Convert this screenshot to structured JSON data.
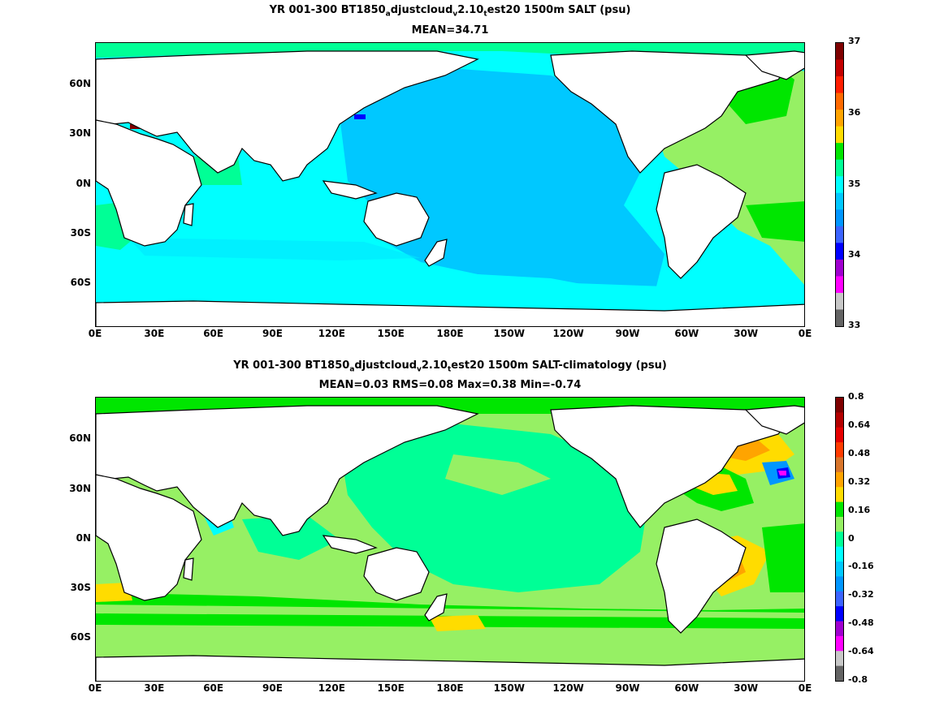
{
  "panel1": {
    "title_prefix": "YR 001-300 BT1850",
    "title_sub_a": "a",
    "title_mid1": "djustcloud",
    "title_sub_v": "v",
    "title_mid2": "2.10",
    "title_sub_t": "t",
    "title_suffix": "est20 1500m SALT (psu)",
    "stats": "MEAN=34.71",
    "colorbar_labels": [
      "37",
      "36",
      "35",
      "34",
      "33"
    ],
    "colorbar_colors": [
      "#7f0000",
      "#c30000",
      "#ff1e00",
      "#ff6a00",
      "#ffa400",
      "#ffdc00",
      "#00e600",
      "#00ff96",
      "#00ffff",
      "#00c8ff",
      "#0096ff",
      "#3c64ff",
      "#0000ff",
      "#a000d0",
      "#ff00ff",
      "#c8c8c8",
      "#646464"
    ]
  },
  "panel2": {
    "title_prefix": "YR 001-300 BT1850",
    "title_sub_a": "a",
    "title_mid1": "djustcloud",
    "title_sub_v": "v",
    "title_mid2": "2.10",
    "title_sub_t": "t",
    "title_suffix": "est20 1500m SALT-climatology (psu)",
    "stats": "MEAN=0.03   RMS=0.08   Max=0.38   Min=-0.74",
    "colorbar_labels": [
      "0.8",
      "0.64",
      "0.48",
      "0.32",
      "0.16",
      "0",
      "-0.16",
      "-0.32",
      "-0.48",
      "-0.64",
      "-0.8"
    ],
    "colorbar_colors": [
      "#7f0000",
      "#b40000",
      "#e60000",
      "#ff3c00",
      "#d9762c",
      "#ffa400",
      "#ffdc00",
      "#00e600",
      "#96f064",
      "#00ff96",
      "#00ffff",
      "#00c8ff",
      "#0096ff",
      "#3c64ff",
      "#0000ff",
      "#a000d0",
      "#ff00ff",
      "#c8c8c8",
      "#646464"
    ]
  },
  "lat_labels": [
    "60N",
    "30N",
    "0N",
    "30S",
    "60S"
  ],
  "lon_labels": [
    "0E",
    "30E",
    "60E",
    "90E",
    "120E",
    "150E",
    "180E",
    "150W",
    "120W",
    "90W",
    "60W",
    "30W",
    "0E"
  ]
}
